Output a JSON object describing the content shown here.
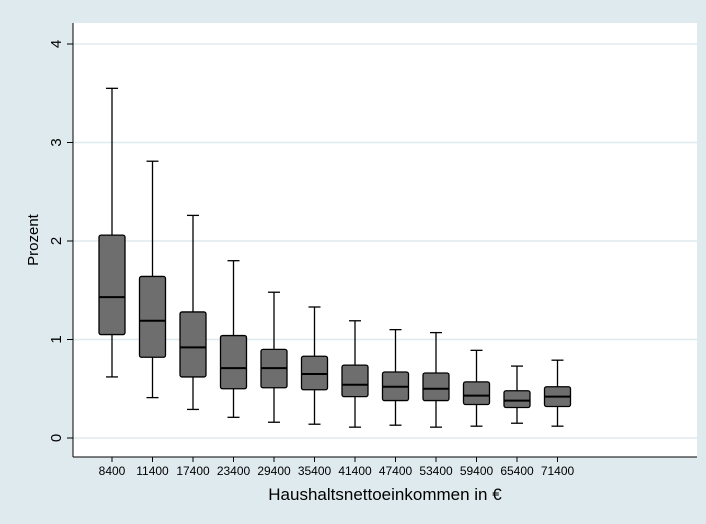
{
  "chart_data": {
    "type": "box",
    "title": "",
    "xlabel": "Haushaltsnettoeinkommen in €",
    "ylabel": "Prozent",
    "ylim": [
      -0.1,
      4.1
    ],
    "yticks": [
      0,
      1,
      2,
      3,
      4
    ],
    "grid": true,
    "colors": {
      "background": "#dfeaef",
      "plot_bg": "#ffffff",
      "box_fill": "#6e6e6e",
      "grid": "#dfeaef",
      "line": "#000000"
    },
    "categories": [
      "8400",
      "11400",
      "17400",
      "23400",
      "29400",
      "35400",
      "41400",
      "47400",
      "53400",
      "59400",
      "65400",
      "71400"
    ],
    "boxes": [
      {
        "whisker_low": 0.62,
        "q1": 1.05,
        "median": 1.43,
        "q3": 2.06,
        "whisker_high": 3.55
      },
      {
        "whisker_low": 0.41,
        "q1": 0.82,
        "median": 1.19,
        "q3": 1.64,
        "whisker_high": 2.81
      },
      {
        "whisker_low": 0.29,
        "q1": 0.62,
        "median": 0.92,
        "q3": 1.28,
        "whisker_high": 2.26
      },
      {
        "whisker_low": 0.21,
        "q1": 0.5,
        "median": 0.71,
        "q3": 1.04,
        "whisker_high": 1.8
      },
      {
        "whisker_low": 0.16,
        "q1": 0.51,
        "median": 0.71,
        "q3": 0.9,
        "whisker_high": 1.48
      },
      {
        "whisker_low": 0.14,
        "q1": 0.49,
        "median": 0.65,
        "q3": 0.83,
        "whisker_high": 1.33
      },
      {
        "whisker_low": 0.11,
        "q1": 0.42,
        "median": 0.54,
        "q3": 0.74,
        "whisker_high": 1.19
      },
      {
        "whisker_low": 0.13,
        "q1": 0.38,
        "median": 0.52,
        "q3": 0.67,
        "whisker_high": 1.1
      },
      {
        "whisker_low": 0.11,
        "q1": 0.38,
        "median": 0.5,
        "q3": 0.66,
        "whisker_high": 1.07
      },
      {
        "whisker_low": 0.12,
        "q1": 0.34,
        "median": 0.43,
        "q3": 0.57,
        "whisker_high": 0.89
      },
      {
        "whisker_low": 0.15,
        "q1": 0.31,
        "median": 0.38,
        "q3": 0.48,
        "whisker_high": 0.73
      },
      {
        "whisker_low": 0.12,
        "q1": 0.32,
        "median": 0.42,
        "q3": 0.52,
        "whisker_high": 0.79
      }
    ]
  }
}
